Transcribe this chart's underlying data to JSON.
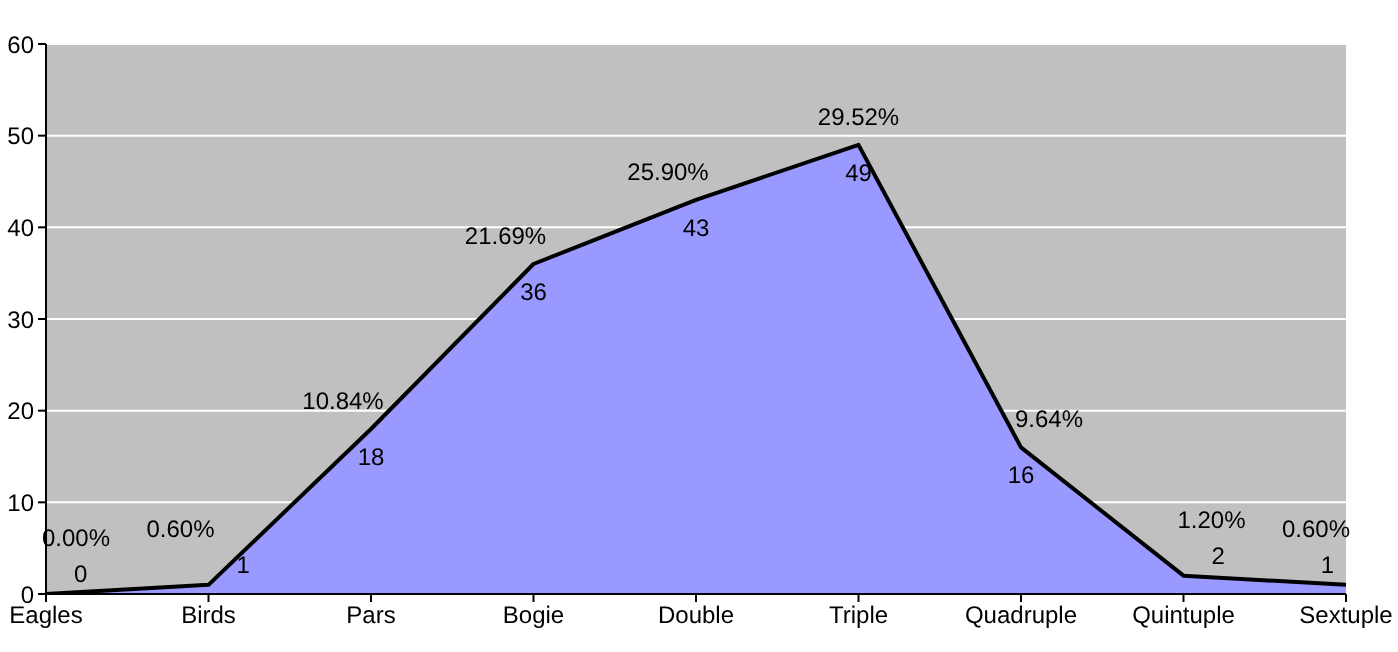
{
  "chart_data": {
    "type": "area",
    "categories": [
      "Eagles",
      "Birds",
      "Pars",
      "Bogie",
      "Double",
      "Triple",
      "Quadruple",
      "Quintuple",
      "Sextuple"
    ],
    "series": [
      {
        "color": "#9999ff",
        "values": [
          0,
          1,
          18,
          36,
          43,
          49,
          16,
          2,
          1
        ],
        "data_labels": true
      }
    ],
    "annotations": [
      "0.00%",
      "0.60%",
      "10.84%",
      "21.69%",
      "25.90%",
      "29.52%",
      "9.64%",
      "1.20%",
      "0.60%"
    ],
    "ylim": [
      0,
      60
    ],
    "yticks": [
      0,
      10,
      20,
      30,
      40,
      50,
      60
    ],
    "grid": "y",
    "legend": false,
    "marker": "none"
  }
}
